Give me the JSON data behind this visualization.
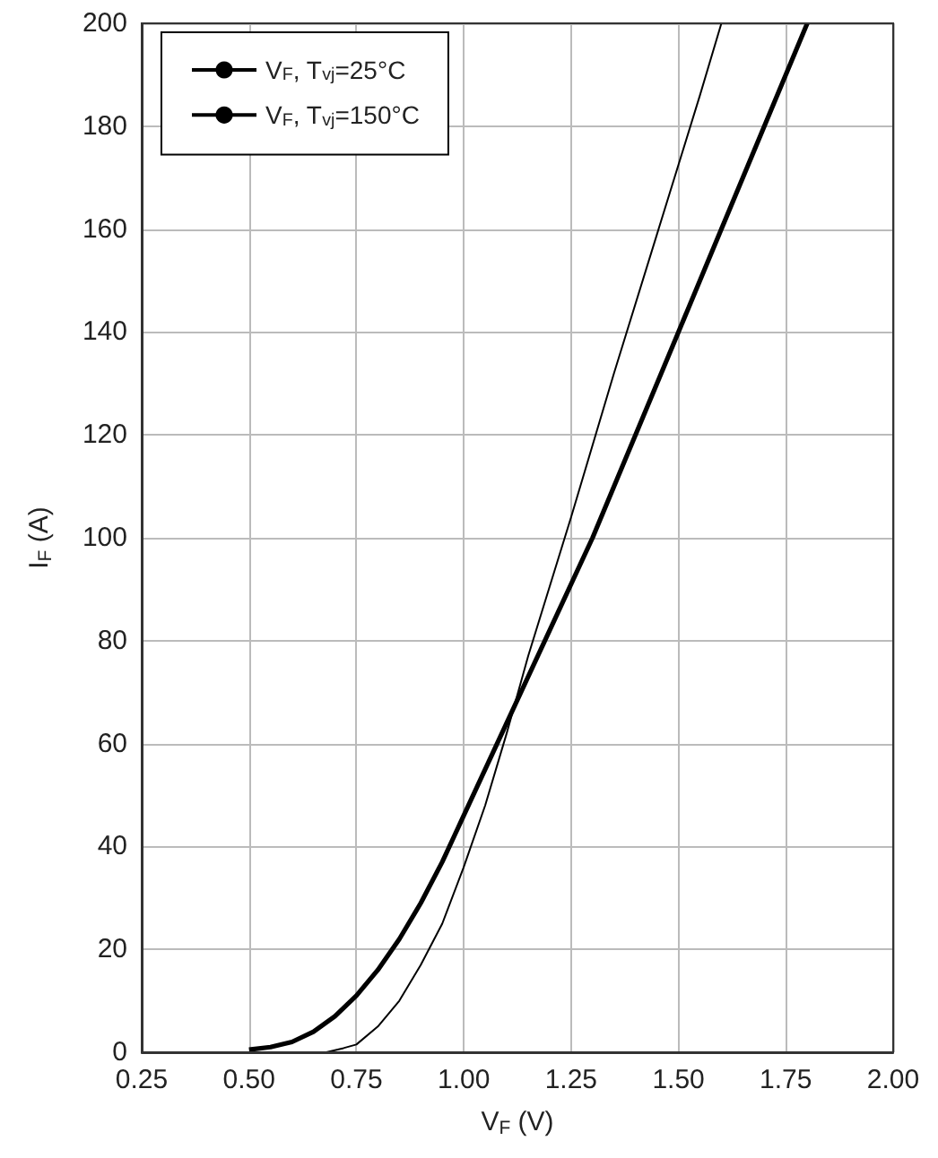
{
  "chart_data": {
    "type": "line",
    "xlabel": "V$_{F}$ (V)",
    "ylabel": "I$_{F}$ (A)",
    "xlim": [
      0.25,
      2.0
    ],
    "xticks": [
      {
        "value": 0.25,
        "label": "0.25"
      },
      {
        "value": 0.5,
        "label": "0.50"
      },
      {
        "value": 0.75,
        "label": "0.75"
      },
      {
        "value": 1.0,
        "label": "1.00"
      },
      {
        "value": 1.25,
        "label": "1.25"
      },
      {
        "value": 1.5,
        "label": "1.50"
      },
      {
        "value": 1.75,
        "label": "1.75"
      },
      {
        "value": 2.0,
        "label": "2.00"
      }
    ],
    "ylim": [
      0,
      200
    ],
    "yticks": [
      0,
      20,
      40,
      60,
      80,
      100,
      120,
      140,
      160,
      180,
      200
    ],
    "grid": true,
    "legend": "top left",
    "marker": "none",
    "line_style": "solid",
    "series": [
      {
        "name": "V$_{F}$, T$_{vj}$=25°C",
        "color": "#000000",
        "x": [
          0.68,
          0.72,
          0.75,
          0.8,
          0.85,
          0.9,
          0.95,
          1.0,
          1.05,
          1.1,
          1.15,
          1.25,
          1.35,
          1.45,
          1.55,
          1.6
        ],
        "values": [
          0,
          0.8,
          1.5,
          5,
          10,
          17,
          25,
          36,
          48,
          62,
          77,
          104,
          132,
          159,
          186,
          200
        ]
      },
      {
        "name": "V$_{F}$, T$_{vj}$=150°C",
        "color": "#000000",
        "x": [
          0.5,
          0.55,
          0.6,
          0.65,
          0.7,
          0.75,
          0.8,
          0.85,
          0.9,
          0.95,
          1.0,
          1.1,
          1.2,
          1.3,
          1.4,
          1.5,
          1.6,
          1.7,
          1.8
        ],
        "values": [
          0.5,
          1,
          2,
          4,
          7,
          11,
          16,
          22,
          29,
          37,
          46,
          64,
          82,
          100,
          120,
          140,
          160,
          180,
          200
        ]
      }
    ]
  }
}
